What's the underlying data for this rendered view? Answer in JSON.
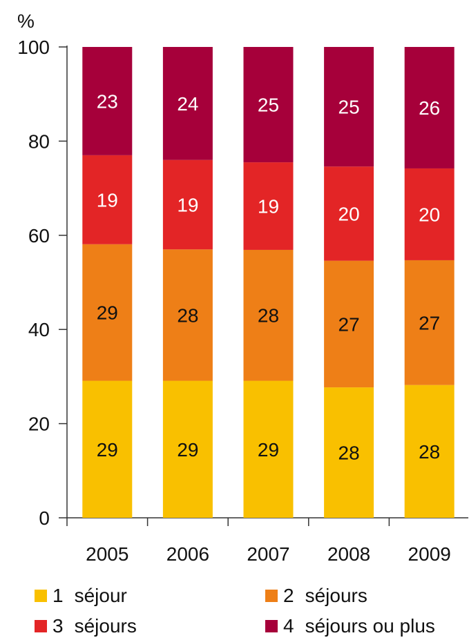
{
  "chart_data": {
    "type": "bar",
    "stacked": true,
    "ylabel": "%",
    "ylim": [
      0,
      100
    ],
    "yticks": [
      0,
      20,
      40,
      60,
      80,
      100
    ],
    "categories": [
      "2005",
      "2006",
      "2007",
      "2008",
      "2009"
    ],
    "series": [
      {
        "name": "1 séjour",
        "color": "#F9C000",
        "values": [
          29.1,
          29.1,
          29.1,
          27.7,
          28.2
        ]
      },
      {
        "name": "2 séjours",
        "color": "#EE7F17",
        "values": [
          29.0,
          27.9,
          27.8,
          26.9,
          26.5
        ]
      },
      {
        "name": "3 séjours",
        "color": "#E32526",
        "values": [
          18.9,
          19.0,
          18.6,
          20.0,
          19.5
        ]
      },
      {
        "name": "4 séjours ou plus",
        "color": "#A6003A",
        "values": [
          23.0,
          24.0,
          24.5,
          25.4,
          25.8
        ]
      }
    ],
    "data_labels": [
      [
        "29",
        "29",
        "29",
        "28",
        "28"
      ],
      [
        "29",
        "28",
        "28",
        "27",
        "27"
      ],
      [
        "19",
        "19",
        "19",
        "20",
        "20"
      ],
      [
        "23",
        "24",
        "25",
        "25",
        "26"
      ]
    ],
    "grid": false
  },
  "legend": [
    {
      "num": "1",
      "label": "séjour",
      "color": "#F9C000"
    },
    {
      "num": "2",
      "label": "séjours",
      "color": "#EE7F17"
    },
    {
      "num": "3",
      "label": "séjours",
      "color": "#E32526"
    },
    {
      "num": "4",
      "label": "séjours ou plus",
      "color": "#A6003A"
    }
  ]
}
